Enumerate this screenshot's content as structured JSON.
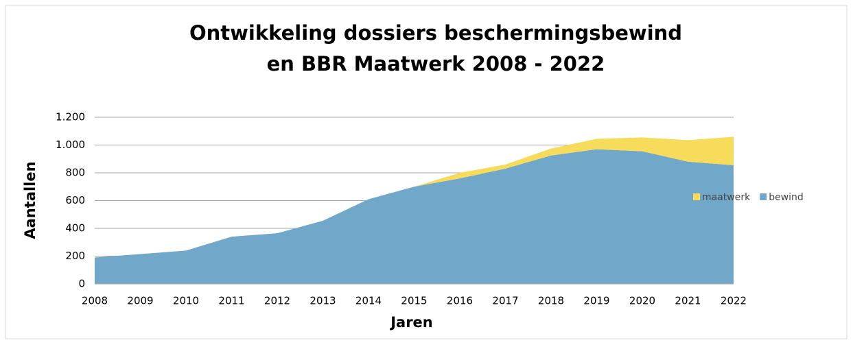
{
  "chart_data": {
    "type": "stacked_area",
    "title": [
      "Ontwikkeling dossiers beschermingsbewind",
      "en BBR Maatwerk 2008 - 2022"
    ],
    "xlabel": "Jaren",
    "ylabel": "Aantallen",
    "x": [
      2008,
      2009,
      2010,
      2011,
      2012,
      2013,
      2014,
      2015,
      2016,
      2017,
      2018,
      2019,
      2020,
      2021,
      2022
    ],
    "series": [
      {
        "name": "bewind",
        "color": "#71a7c8",
        "values": [
          190,
          215,
          240,
          340,
          365,
          455,
          610,
          700,
          760,
          830,
          925,
          970,
          955,
          880,
          855
        ]
      },
      {
        "name": "maatwerk",
        "color": "#f6dc5a",
        "values": [
          null,
          null,
          null,
          null,
          null,
          null,
          null,
          0,
          40,
          30,
          50,
          75,
          100,
          155,
          205
        ]
      }
    ],
    "xlim": [
      2008,
      2022
    ],
    "xticks": [
      2008,
      2009,
      2010,
      2011,
      2012,
      2013,
      2014,
      2015,
      2016,
      2017,
      2018,
      2019,
      2020,
      2021,
      2022
    ],
    "ylim": [
      0,
      1200
    ],
    "yticks": [
      0,
      200,
      400,
      600,
      800,
      {
        "value": 1000,
        "label": "1.000"
      },
      {
        "value": 1200,
        "label": "1.200"
      }
    ],
    "grid": true,
    "legend": "right"
  }
}
